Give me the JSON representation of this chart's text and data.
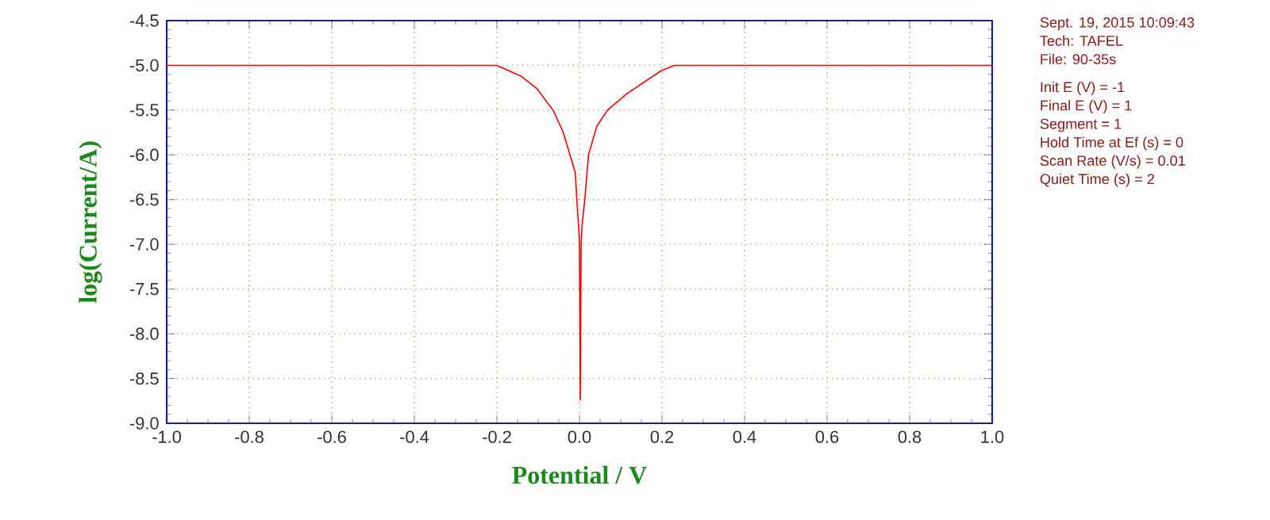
{
  "chart_data": {
    "type": "line",
    "xlabel": "Potential / V",
    "ylabel": "log(Current/A)",
    "series": [
      {
        "color": "#ff0000",
        "x": [
          -1.0,
          -0.6,
          -0.2,
          -0.142,
          -0.103,
          -0.064,
          -0.04,
          -0.023,
          -0.01,
          -0.006,
          0.0,
          0.002,
          0.004,
          0.006,
          0.013,
          0.022,
          0.042,
          0.068,
          0.114,
          0.159,
          0.198,
          0.231,
          0.6,
          1.0
        ],
        "values": [
          -5.0,
          -5.0,
          -5.0,
          -5.12,
          -5.26,
          -5.5,
          -5.74,
          -6.0,
          -6.2,
          -6.53,
          -6.94,
          -8.74,
          -7.0,
          -6.8,
          -6.5,
          -6.0,
          -5.68,
          -5.5,
          -5.32,
          -5.18,
          -5.06,
          -5.0,
          -5.0,
          -5.0
        ]
      }
    ],
    "xlim": [
      -1.0,
      1.0
    ],
    "ylim": [
      -9.0,
      -4.5
    ],
    "xticks": [
      {
        "value": -1.0,
        "label": "-1.0"
      },
      {
        "value": -0.8,
        "label": "-0.8"
      },
      {
        "value": -0.6,
        "label": "-0.6"
      },
      {
        "value": -0.4,
        "label": "-0.4"
      },
      {
        "value": -0.2,
        "label": "-0.2"
      },
      {
        "value": 0.0,
        "label": "0.0"
      },
      {
        "value": 0.2,
        "label": "0.2"
      },
      {
        "value": 0.4,
        "label": "0.4"
      },
      {
        "value": 0.6,
        "label": "0.6"
      },
      {
        "value": 0.8,
        "label": "0.8"
      },
      {
        "value": 1.0,
        "label": "1.0"
      }
    ],
    "yticks": [
      {
        "value": -9.0,
        "label": "-9.0"
      },
      {
        "value": -8.5,
        "label": "-8.5"
      },
      {
        "value": -8.0,
        "label": "-8.0"
      },
      {
        "value": -7.5,
        "label": "-7.5"
      },
      {
        "value": -7.0,
        "label": "-7.0"
      },
      {
        "value": -6.5,
        "label": "-6.5"
      },
      {
        "value": -6.0,
        "label": "-6.0"
      },
      {
        "value": -5.5,
        "label": "-5.5"
      },
      {
        "value": -5.0,
        "label": "-5.0"
      },
      {
        "value": -4.5,
        "label": "-4.5"
      }
    ],
    "grid": true,
    "marker": "none",
    "line_style": "solid",
    "annotations": [
      "Sept. 19, 2015   10:09:43",
      "Tech: TAFEL",
      "File: 90-35s",
      "Init E (V) = -1",
      "Final E (V) = 1",
      "Segment = 1",
      "Hold Time at Ef (s) = 0",
      "Scan Rate (V/s) = 0.01",
      "Quiet Time (s) = 2"
    ]
  }
}
